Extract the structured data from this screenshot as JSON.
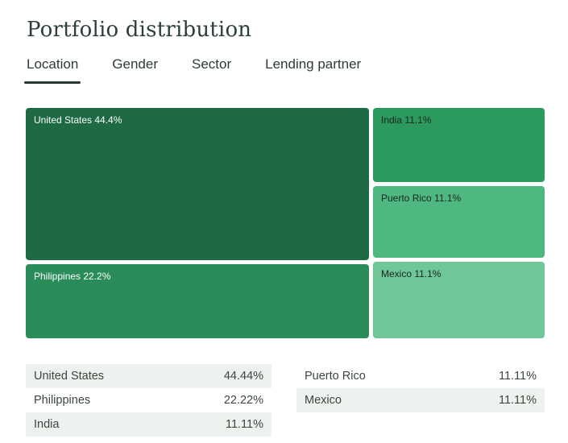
{
  "page": {
    "title": "Portfolio distribution"
  },
  "tabs": [
    {
      "label": "Location",
      "active": true
    },
    {
      "label": "Gender",
      "active": false
    },
    {
      "label": "Sector",
      "active": false
    },
    {
      "label": "Lending partner",
      "active": false
    }
  ],
  "chart_data": {
    "type": "treemap",
    "title": "Portfolio distribution",
    "dimension": "Location",
    "items": [
      {
        "label": "United States",
        "value_pct": 44.44,
        "block_label": "United States 44.4%",
        "color": "#1d6a43",
        "text_color": "#ffffff"
      },
      {
        "label": "Philippines",
        "value_pct": 22.22,
        "block_label": "Philippines 22.2%",
        "color": "#2a8c58",
        "text_color": "#ffffff"
      },
      {
        "label": "India",
        "value_pct": 11.11,
        "block_label": "India 11.1%",
        "color": "#2c9a5f",
        "text_color": "#16271e"
      },
      {
        "label": "Puerto Rico",
        "value_pct": 11.11,
        "block_label": "Puerto Rico 11.1%",
        "color": "#4fb780",
        "text_color": "#16271e"
      },
      {
        "label": "Mexico",
        "value_pct": 11.11,
        "block_label": "Mexico 11.1%",
        "color": "#6fc697",
        "text_color": "#16271e"
      }
    ],
    "legend_table": {
      "left_rows": [
        {
          "label": "United States",
          "value": "44.44%"
        },
        {
          "label": "Philippines",
          "value": "22.22%"
        },
        {
          "label": "India",
          "value": "11.11%"
        }
      ],
      "right_rows": [
        {
          "label": "Puerto Rico",
          "value": "11.11%"
        },
        {
          "label": "Mexico",
          "value": "11.11%"
        }
      ]
    }
  },
  "colors": {
    "stripe": "#edf2ef",
    "tab_underline": "#24382e",
    "text_dark": "#2e3b34"
  }
}
